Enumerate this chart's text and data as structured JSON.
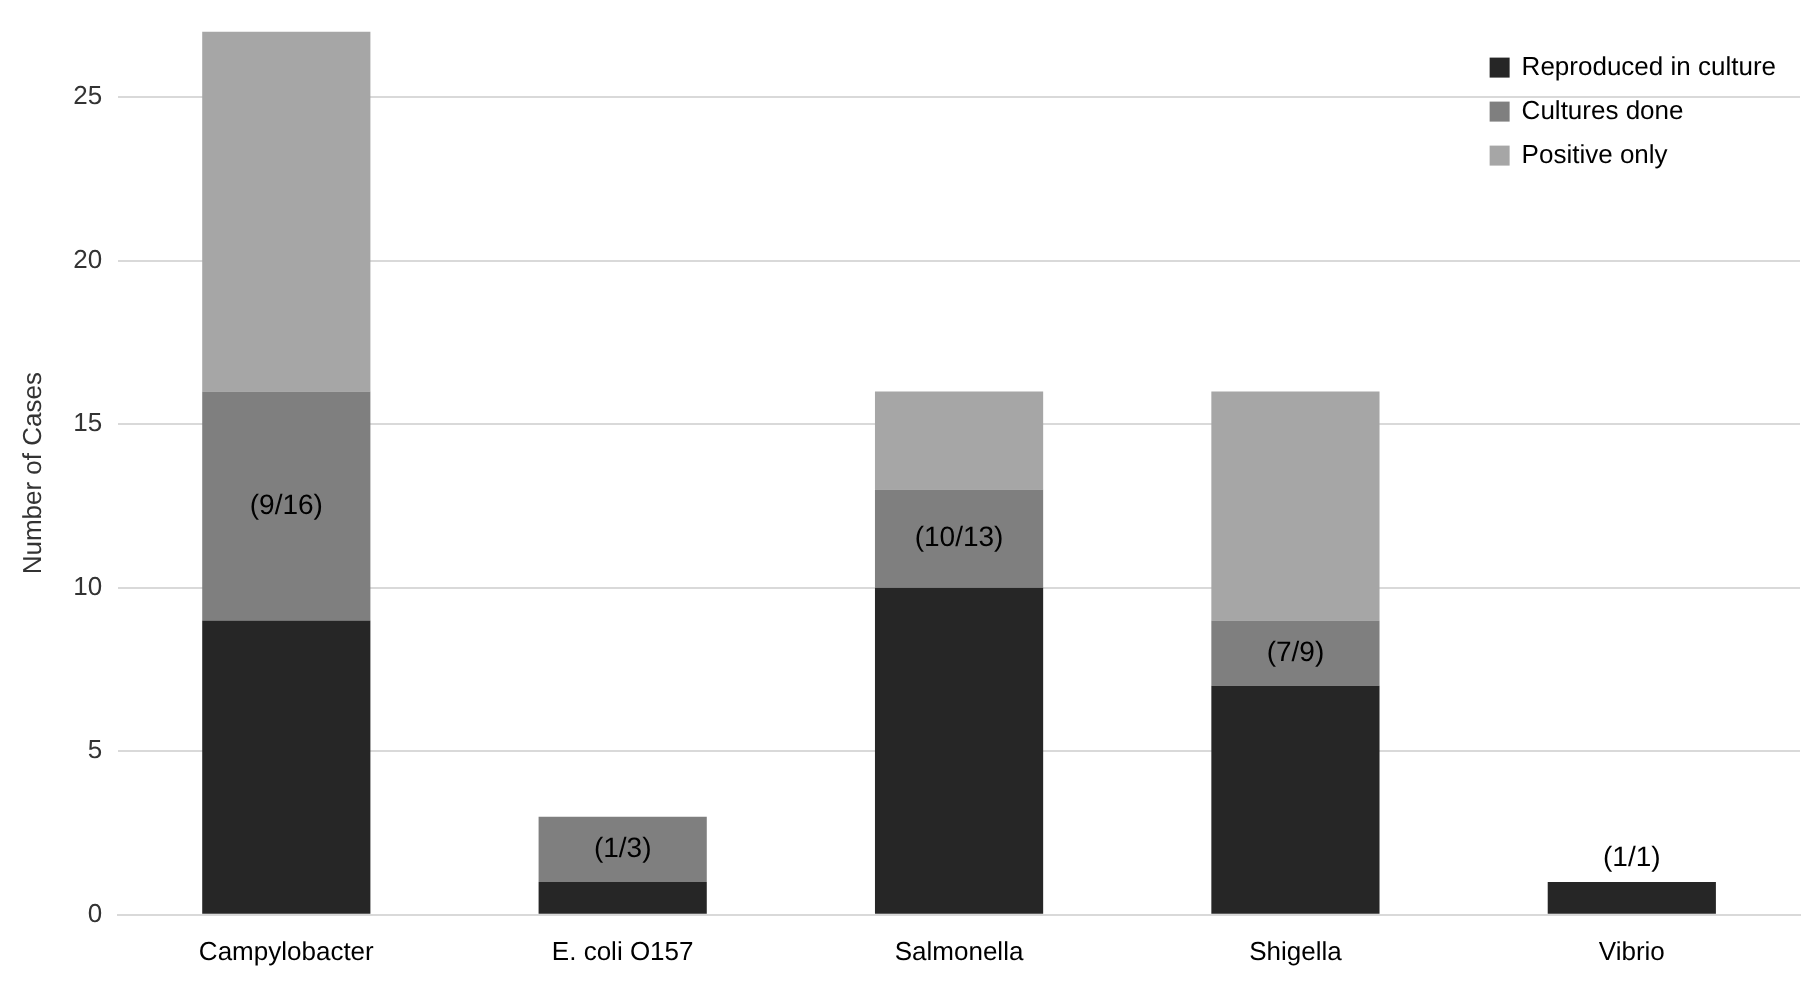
{
  "chart_data": {
    "type": "bar",
    "stacked": true,
    "ylabel": "Number of Cases",
    "categories": [
      "Campylobacter",
      "E. coli O157",
      "Salmonella",
      "Shigella",
      "Vibrio"
    ],
    "series": [
      {
        "name": "Reproduced in culture",
        "color": "#262626",
        "values": [
          9,
          1,
          10,
          7,
          1
        ]
      },
      {
        "name": "Cultures done",
        "color": "#7f7f7f",
        "values": [
          7,
          2,
          3,
          2,
          0
        ]
      },
      {
        "name": "Positive only",
        "color": "#a6a6a6",
        "values": [
          11,
          0,
          3,
          7,
          0
        ]
      }
    ],
    "ylim": [
      0,
      27
    ],
    "yticks": [
      0,
      5,
      10,
      15,
      20,
      25
    ],
    "grid": "y",
    "legend": "top right",
    "annotations": [
      "(9/16)",
      "(1/3)",
      "(10/13)",
      "(7/9)",
      "(1/1)"
    ]
  }
}
